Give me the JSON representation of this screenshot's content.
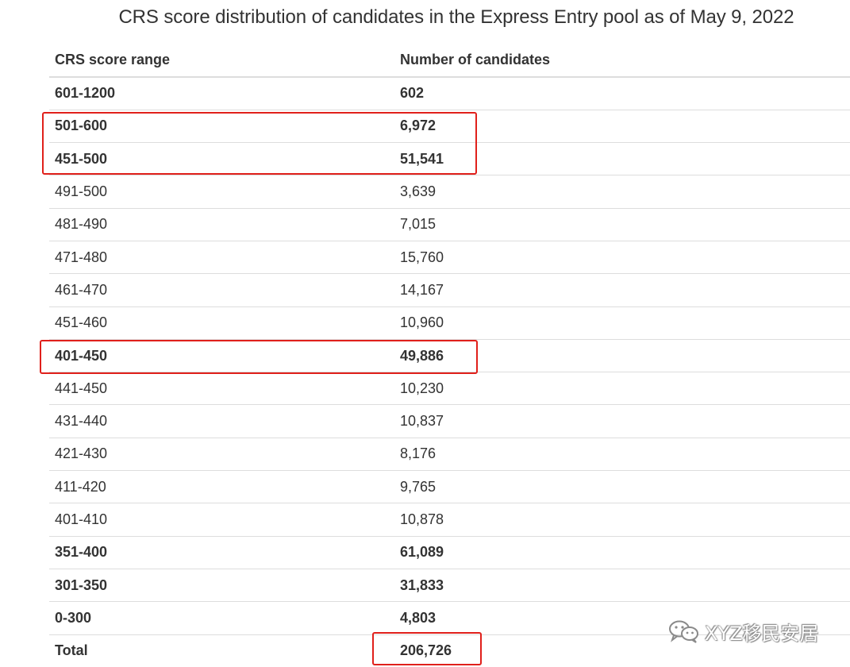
{
  "title": "CRS score distribution of candidates in the Express Entry pool as of May 9, 2022",
  "table": {
    "headers": [
      "CRS score range",
      "Number of candidates"
    ],
    "rows": [
      {
        "range": "601-1200",
        "count": "602"
      },
      {
        "range": "501-600",
        "count": "6,972"
      },
      {
        "range": "451-500",
        "count": "51,541"
      },
      {
        "range": "491-500",
        "count": "3,639"
      },
      {
        "range": "481-490",
        "count": "7,015"
      },
      {
        "range": "471-480",
        "count": "15,760"
      },
      {
        "range": "461-470",
        "count": "14,167"
      },
      {
        "range": "451-460",
        "count": "10,960"
      },
      {
        "range": "401-450",
        "count": "49,886"
      },
      {
        "range": "441-450",
        "count": "10,230"
      },
      {
        "range": "431-440",
        "count": "10,837"
      },
      {
        "range": "421-430",
        "count": "8,176"
      },
      {
        "range": "411-420",
        "count": "9,765"
      },
      {
        "range": "401-410",
        "count": "10,878"
      },
      {
        "range": "351-400",
        "count": "61,089"
      },
      {
        "range": "301-350",
        "count": "31,833"
      },
      {
        "range": "0-300",
        "count": "4,803"
      },
      {
        "range": "Total",
        "count": "206,726"
      }
    ]
  },
  "watermark": {
    "icon": "wechat-icon",
    "text": "XYZ移民安居"
  },
  "colors": {
    "highlight": "#e0201b",
    "text": "#333333",
    "rule": "#dddddd"
  }
}
